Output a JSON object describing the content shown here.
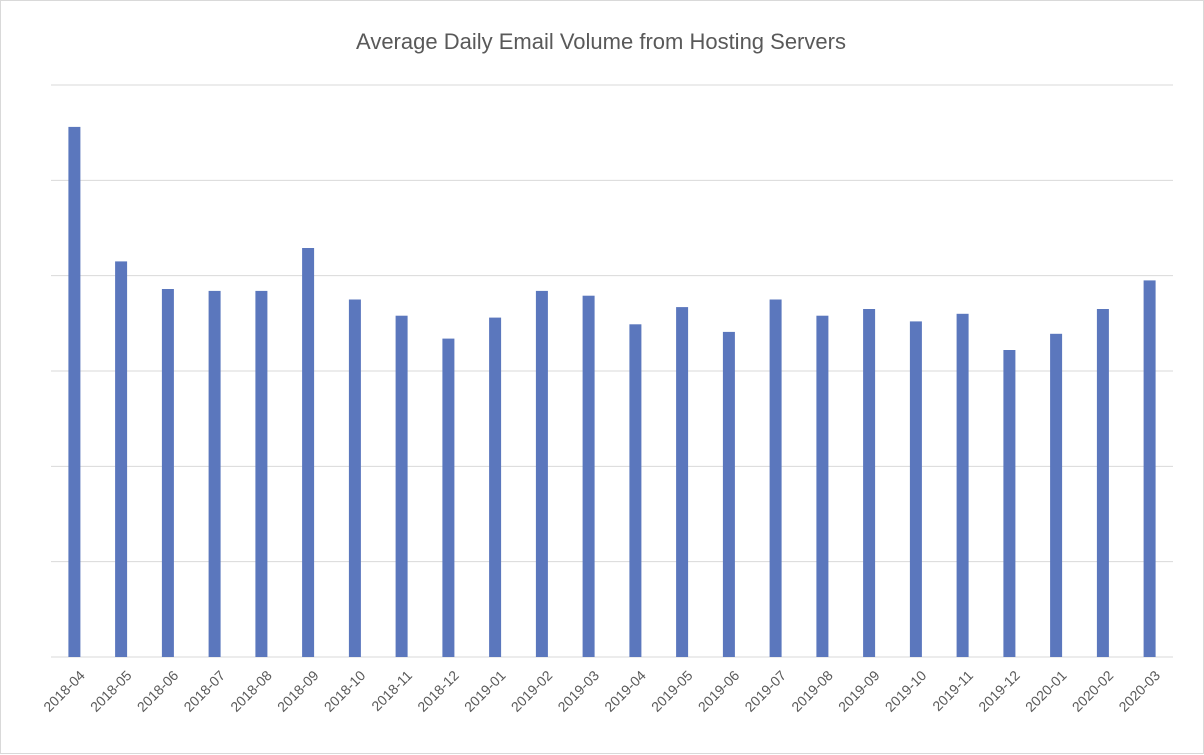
{
  "chart_data": {
    "type": "bar",
    "title": "Average Daily Email Volume from Hosting Servers",
    "xlabel": "",
    "ylabel": "",
    "y_tick_labels_shown": false,
    "grid": true,
    "legend": "none",
    "ylim": [
      0,
      6
    ],
    "bar_color": "#5b77bd",
    "categories": [
      "2018-04",
      "2018-05",
      "2018-06",
      "2018-07",
      "2018-08",
      "2018-09",
      "2018-10",
      "2018-11",
      "2018-12",
      "2019-01",
      "2019-02",
      "2019-03",
      "2019-04",
      "2019-05",
      "2019-06",
      "2019-07",
      "2019-08",
      "2019-09",
      "2019-10",
      "2019-11",
      "2019-12",
      "2020-01",
      "2020-02",
      "2020-03"
    ],
    "values": [
      5.56,
      4.15,
      3.86,
      3.84,
      3.84,
      4.29,
      3.75,
      3.58,
      3.34,
      3.56,
      3.84,
      3.79,
      3.49,
      3.67,
      3.41,
      3.75,
      3.58,
      3.65,
      3.52,
      3.6,
      3.22,
      3.39,
      3.65,
      3.95
    ]
  }
}
